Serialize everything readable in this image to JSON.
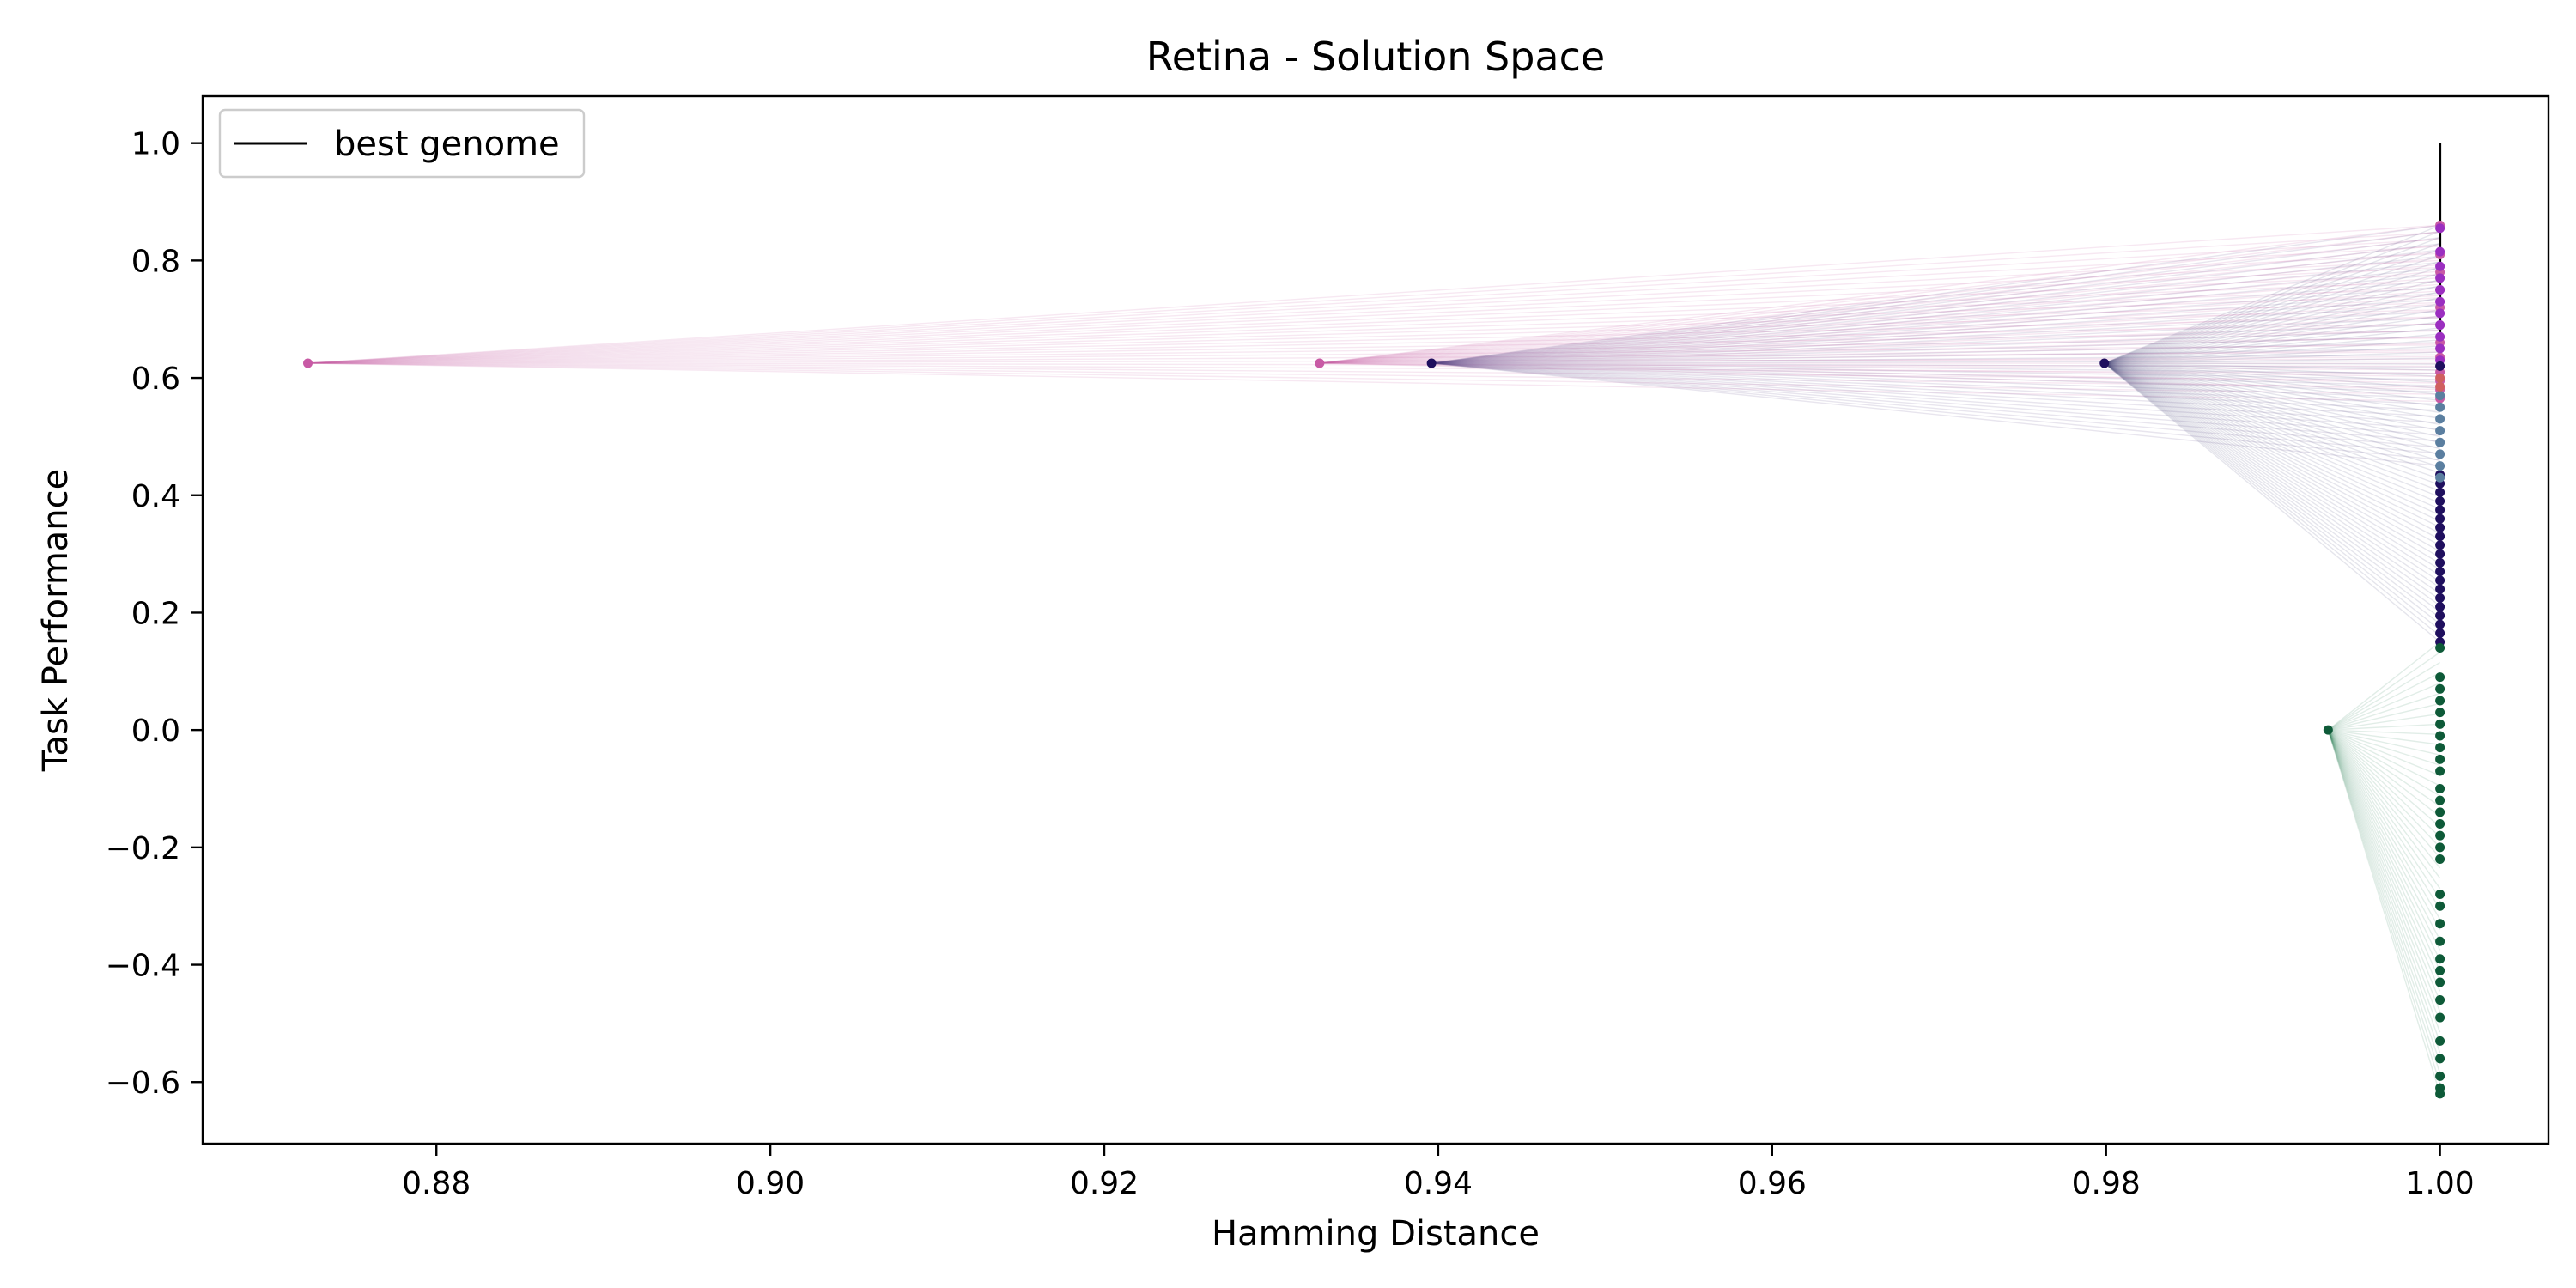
{
  "chart_data": {
    "type": "scatter",
    "title": "Retina - Solution Space",
    "xlabel": "Hamming Distance",
    "ylabel": "Task Performance",
    "xlim": [
      0.866,
      1.0065
    ],
    "ylim": [
      -0.705,
      1.08
    ],
    "xticks": [
      0.88,
      0.9,
      0.92,
      0.94,
      0.96,
      0.98,
      1.0
    ],
    "xtick_labels": [
      "0.88",
      "0.90",
      "0.92",
      "0.94",
      "0.96",
      "0.98",
      "1.00"
    ],
    "yticks": [
      -0.6,
      -0.4,
      -0.2,
      0.0,
      0.2,
      0.4,
      0.6,
      0.8,
      1.0
    ],
    "ytick_labels": [
      "−0.6",
      "−0.4",
      "−0.2",
      "0.0",
      "0.2",
      "0.4",
      "0.6",
      "0.8",
      "1.0"
    ],
    "grid": false,
    "legend": {
      "position": "top-left",
      "entries": [
        {
          "label": "best genome",
          "color": "#000000",
          "style": "line"
        }
      ]
    },
    "best_genome": {
      "x": 1.0,
      "y_from": 0.62,
      "y_to": 1.0,
      "color": "#000000"
    },
    "series": [
      {
        "color": "#c85aa5",
        "points": [
          {
            "x": 0.8723,
            "y": 0.625
          },
          {
            "x": 0.9329,
            "y": 0.625
          },
          {
            "x": 1.0,
            "y": 0.565
          },
          {
            "x": 1.0,
            "y": 0.58
          },
          {
            "x": 1.0,
            "y": 0.595
          },
          {
            "x": 1.0,
            "y": 0.61
          },
          {
            "x": 1.0,
            "y": 0.635
          },
          {
            "x": 1.0,
            "y": 0.66
          },
          {
            "x": 1.0,
            "y": 0.69
          },
          {
            "x": 1.0,
            "y": 0.72
          },
          {
            "x": 1.0,
            "y": 0.75
          },
          {
            "x": 1.0,
            "y": 0.78
          },
          {
            "x": 1.0,
            "y": 0.81
          },
          {
            "x": 1.0,
            "y": 0.86
          }
        ]
      },
      {
        "color": "#9b2fc0",
        "points": [
          {
            "x": 1.0,
            "y": 0.63
          },
          {
            "x": 1.0,
            "y": 0.65
          },
          {
            "x": 1.0,
            "y": 0.67
          },
          {
            "x": 1.0,
            "y": 0.69
          },
          {
            "x": 1.0,
            "y": 0.71
          },
          {
            "x": 1.0,
            "y": 0.73
          },
          {
            "x": 1.0,
            "y": 0.75
          },
          {
            "x": 1.0,
            "y": 0.77
          },
          {
            "x": 1.0,
            "y": 0.79
          },
          {
            "x": 1.0,
            "y": 0.815
          },
          {
            "x": 1.0,
            "y": 0.855
          }
        ]
      },
      {
        "color": "#1f0f5e",
        "points": [
          {
            "x": 0.9396,
            "y": 0.625
          },
          {
            "x": 0.9799,
            "y": 0.625
          },
          {
            "x": 1.0,
            "y": 0.15
          },
          {
            "x": 1.0,
            "y": 0.165
          },
          {
            "x": 1.0,
            "y": 0.18
          },
          {
            "x": 1.0,
            "y": 0.195
          },
          {
            "x": 1.0,
            "y": 0.21
          },
          {
            "x": 1.0,
            "y": 0.225
          },
          {
            "x": 1.0,
            "y": 0.24
          },
          {
            "x": 1.0,
            "y": 0.255
          },
          {
            "x": 1.0,
            "y": 0.27
          },
          {
            "x": 1.0,
            "y": 0.285
          },
          {
            "x": 1.0,
            "y": 0.3
          },
          {
            "x": 1.0,
            "y": 0.315
          },
          {
            "x": 1.0,
            "y": 0.33
          },
          {
            "x": 1.0,
            "y": 0.345
          },
          {
            "x": 1.0,
            "y": 0.36
          },
          {
            "x": 1.0,
            "y": 0.375
          },
          {
            "x": 1.0,
            "y": 0.39
          },
          {
            "x": 1.0,
            "y": 0.405
          },
          {
            "x": 1.0,
            "y": 0.42
          },
          {
            "x": 1.0,
            "y": 0.435
          },
          {
            "x": 1.0,
            "y": 0.62
          }
        ]
      },
      {
        "color": "#5b7fa0",
        "points": [
          {
            "x": 1.0,
            "y": 0.43
          },
          {
            "x": 1.0,
            "y": 0.45
          },
          {
            "x": 1.0,
            "y": 0.47
          },
          {
            "x": 1.0,
            "y": 0.49
          },
          {
            "x": 1.0,
            "y": 0.51
          },
          {
            "x": 1.0,
            "y": 0.53
          },
          {
            "x": 1.0,
            "y": 0.55
          },
          {
            "x": 1.0,
            "y": 0.57
          }
        ]
      },
      {
        "color": "#d06060",
        "points": [
          {
            "x": 1.0,
            "y": 0.585
          },
          {
            "x": 1.0,
            "y": 0.6
          }
        ]
      },
      {
        "color": "#0e5a38",
        "points": [
          {
            "x": 0.9933,
            "y": 0.0
          },
          {
            "x": 1.0,
            "y": 0.14
          },
          {
            "x": 1.0,
            "y": 0.09
          },
          {
            "x": 1.0,
            "y": 0.07
          },
          {
            "x": 1.0,
            "y": 0.05
          },
          {
            "x": 1.0,
            "y": 0.03
          },
          {
            "x": 1.0,
            "y": 0.01
          },
          {
            "x": 1.0,
            "y": -0.01
          },
          {
            "x": 1.0,
            "y": -0.03
          },
          {
            "x": 1.0,
            "y": -0.05
          },
          {
            "x": 1.0,
            "y": -0.07
          },
          {
            "x": 1.0,
            "y": -0.1
          },
          {
            "x": 1.0,
            "y": -0.12
          },
          {
            "x": 1.0,
            "y": -0.14
          },
          {
            "x": 1.0,
            "y": -0.16
          },
          {
            "x": 1.0,
            "y": -0.18
          },
          {
            "x": 1.0,
            "y": -0.2
          },
          {
            "x": 1.0,
            "y": -0.22
          },
          {
            "x": 1.0,
            "y": -0.28
          },
          {
            "x": 1.0,
            "y": -0.3
          },
          {
            "x": 1.0,
            "y": -0.33
          },
          {
            "x": 1.0,
            "y": -0.36
          },
          {
            "x": 1.0,
            "y": -0.39
          },
          {
            "x": 1.0,
            "y": -0.41
          },
          {
            "x": 1.0,
            "y": -0.43
          },
          {
            "x": 1.0,
            "y": -0.46
          },
          {
            "x": 1.0,
            "y": -0.49
          },
          {
            "x": 1.0,
            "y": -0.53
          },
          {
            "x": 1.0,
            "y": -0.56
          },
          {
            "x": 1.0,
            "y": -0.59
          },
          {
            "x": 1.0,
            "y": -0.61
          },
          {
            "x": 1.0,
            "y": -0.62
          }
        ]
      }
    ],
    "connections": [
      {
        "from": [
          0.8723,
          0.625
        ],
        "to_x": 1.0,
        "to_y_from": 0.56,
        "to_y_to": 0.86,
        "count": 26,
        "color": "#c85aa5"
      },
      {
        "from": [
          0.9329,
          0.625
        ],
        "to_x": 1.0,
        "to_y_from": 0.58,
        "to_y_to": 0.86,
        "count": 26,
        "color": "#c85aa5"
      },
      {
        "from": [
          0.9396,
          0.625
        ],
        "to_x": 1.0,
        "to_y_from": 0.45,
        "to_y_to": 0.86,
        "count": 40,
        "color": "#5b4a8a"
      },
      {
        "from": [
          0.9799,
          0.625
        ],
        "to_x": 1.0,
        "to_y_from": 0.15,
        "to_y_to": 0.86,
        "count": 70,
        "color": "#4a4a78"
      },
      {
        "from": [
          0.9933,
          0.0
        ],
        "to_x": 1.0,
        "to_y_from": -0.62,
        "to_y_to": 0.15,
        "count": 45,
        "color": "#2e7d55"
      }
    ]
  }
}
